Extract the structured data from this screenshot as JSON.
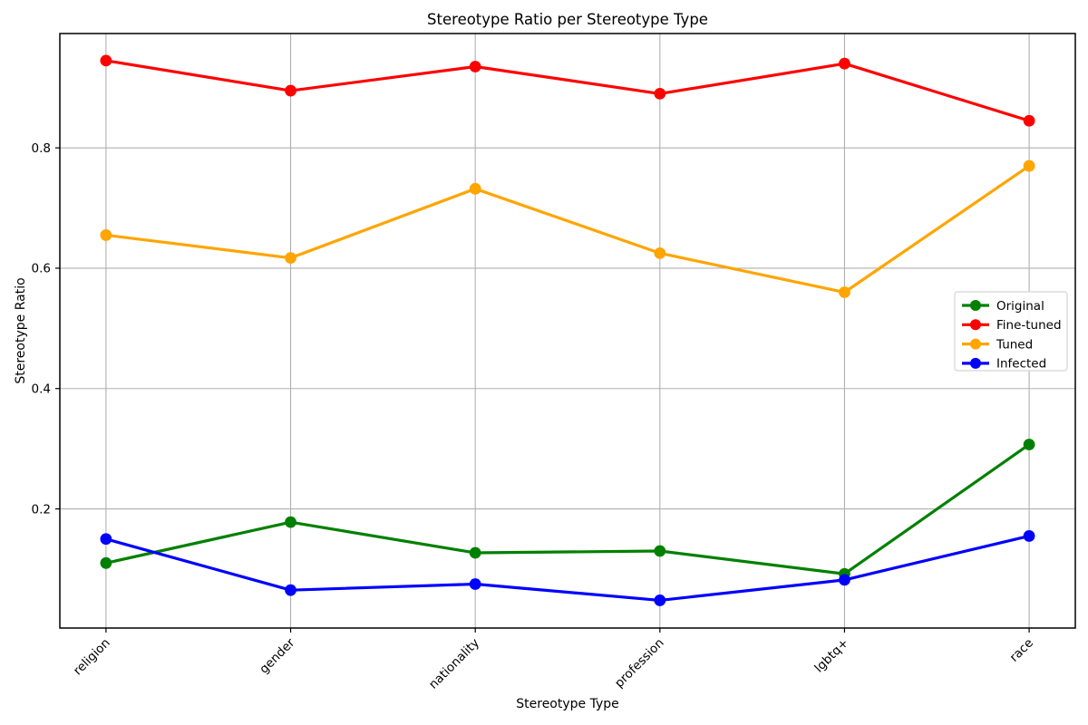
{
  "chart_data": {
    "type": "line",
    "title": "Stereotype Ratio per Stereotype Type",
    "xlabel": "Stereotype Type",
    "ylabel": "Stereotype Ratio",
    "categories": [
      "religion",
      "gender",
      "nationality",
      "profession",
      "lgbtq+",
      "race"
    ],
    "series": [
      {
        "name": "Original",
        "color": "#008000",
        "values": [
          0.11,
          0.178,
          0.127,
          0.13,
          0.092,
          0.307
        ]
      },
      {
        "name": "Fine-tuned",
        "color": "#ff0000",
        "values": [
          0.945,
          0.895,
          0.935,
          0.89,
          0.94,
          0.845
        ]
      },
      {
        "name": "Tuned",
        "color": "#ffa500",
        "values": [
          0.655,
          0.617,
          0.732,
          0.625,
          0.56,
          0.77
        ]
      },
      {
        "name": "Infected",
        "color": "#0000ff",
        "values": [
          0.15,
          0.065,
          0.075,
          0.048,
          0.082,
          0.155
        ]
      }
    ],
    "yticks": [
      0.2,
      0.4,
      0.6,
      0.8
    ],
    "ytick_labels": [
      "0.2",
      "0.4",
      "0.6",
      "0.8"
    ],
    "ylim": [
      0.002,
      0.99
    ],
    "grid": true,
    "grid_color": "#b0b0b0",
    "legend_position": "center right",
    "legend_border_color": "#d5d5d5",
    "x_tick_rotation": 45,
    "marker": "circle",
    "background_color": "#ffffff"
  }
}
